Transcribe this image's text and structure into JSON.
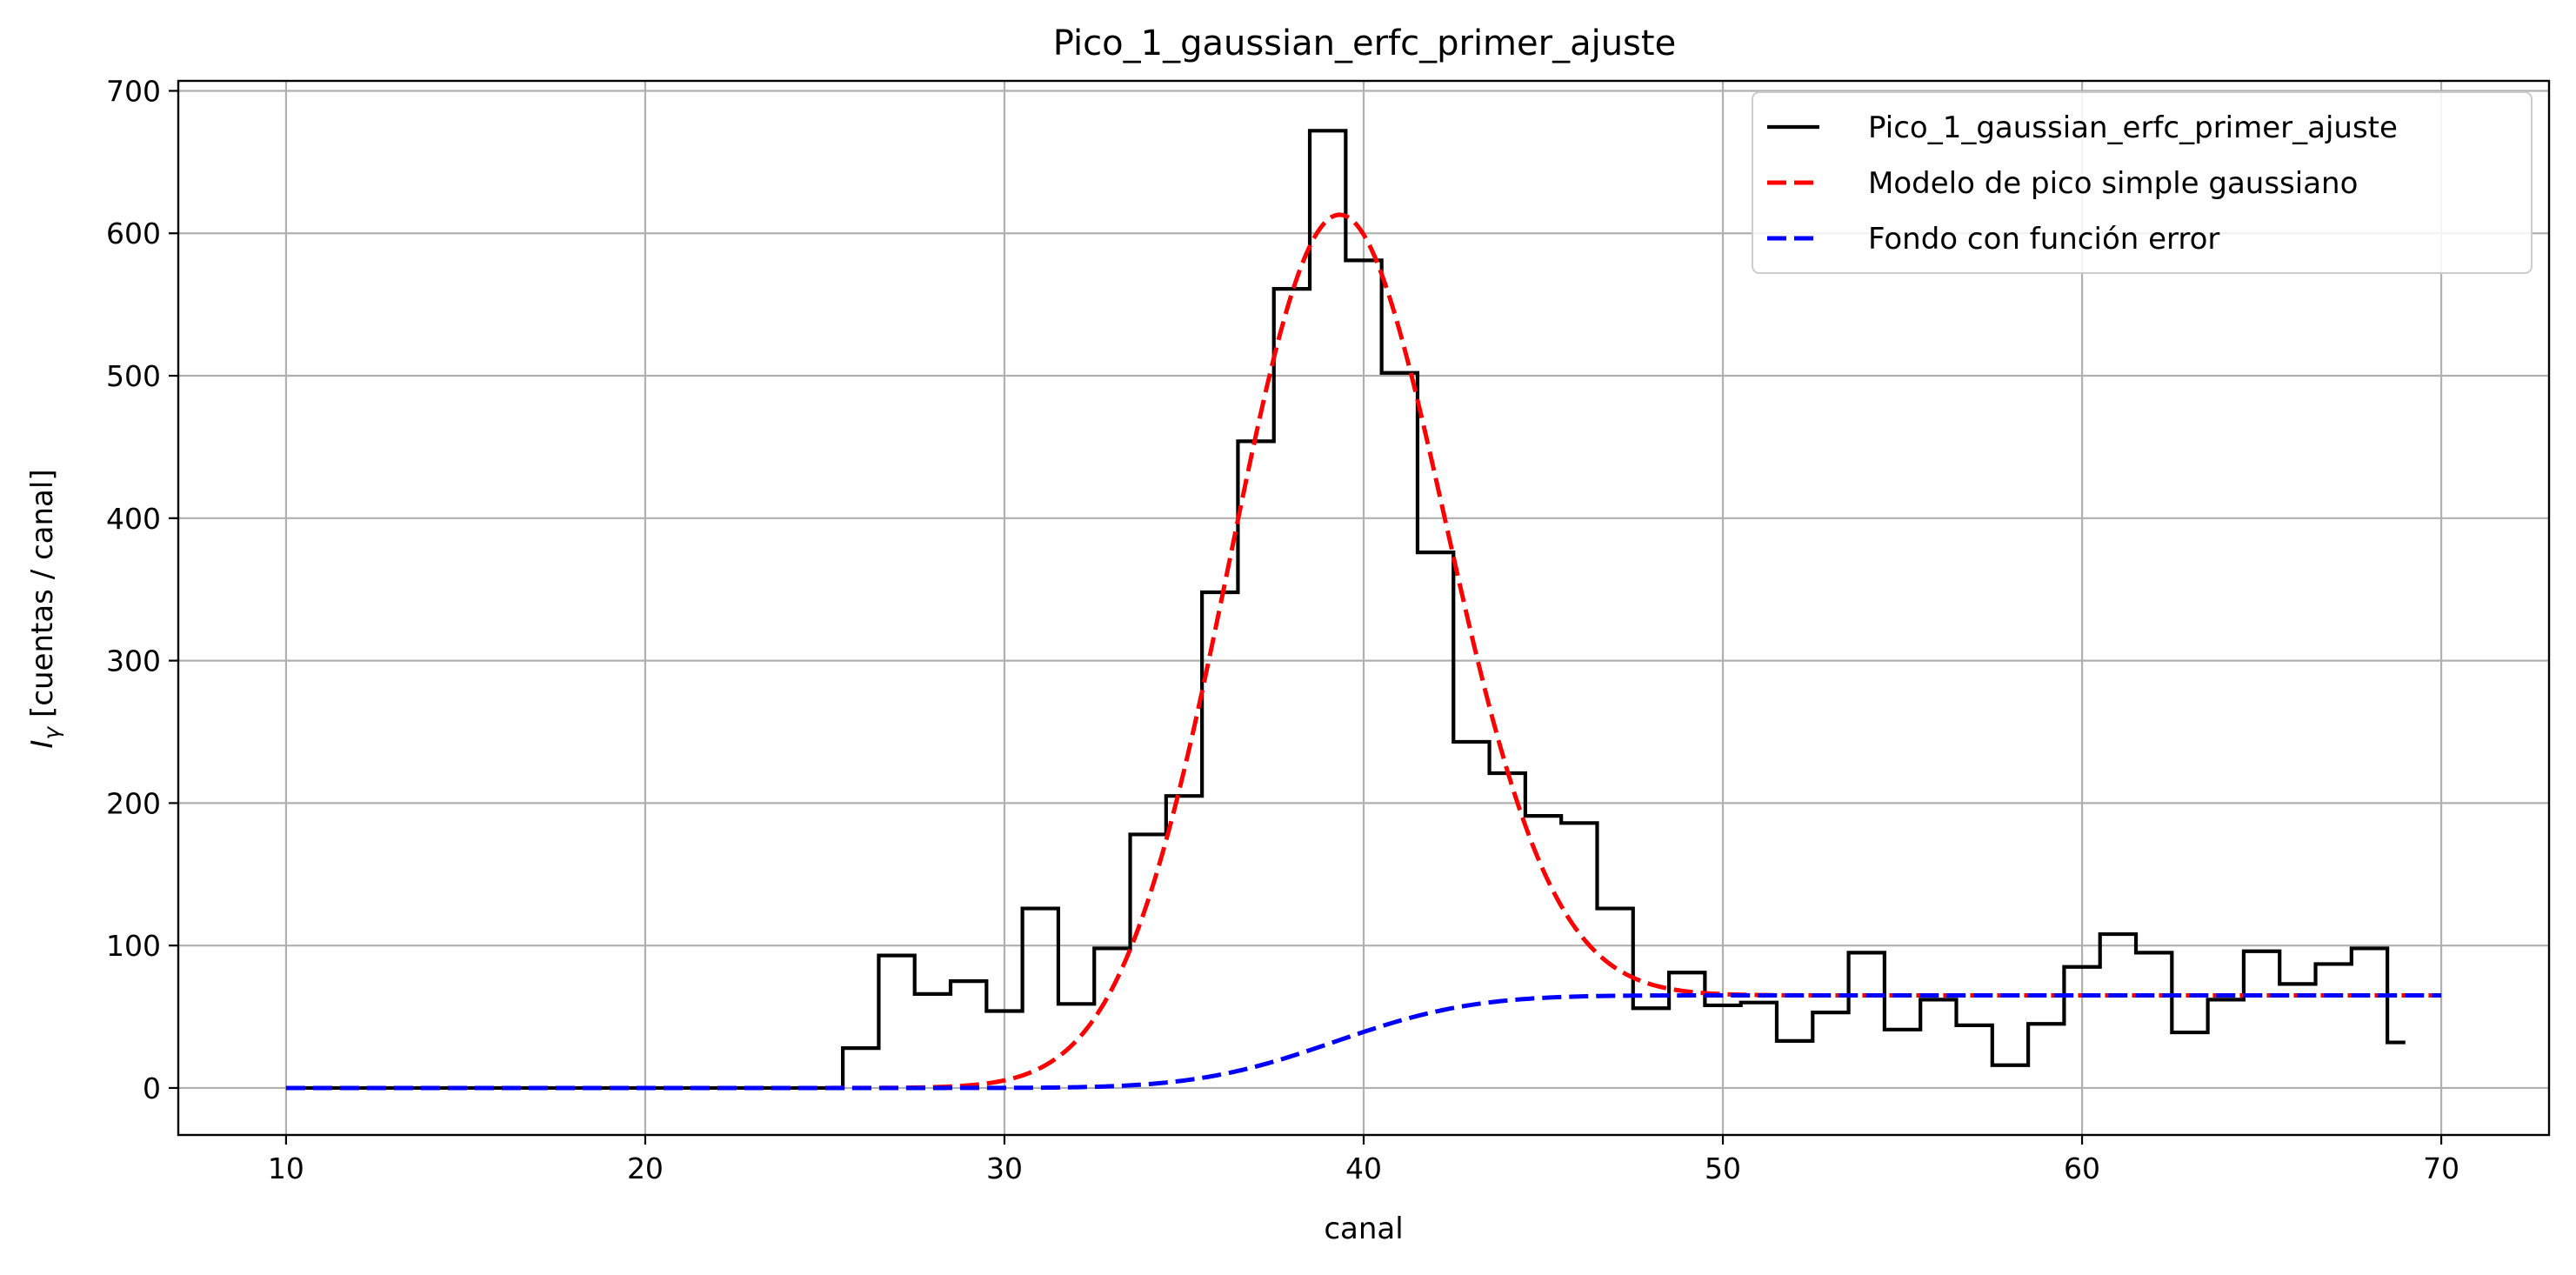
{
  "chart_data": {
    "type": "line",
    "title": "Pico_1_gaussian_erfc_primer_ajuste",
    "xlabel": "canal",
    "ylabel_main": "I",
    "ylabel_sub": "γ",
    "ylabel_rest": " [cuentas / canal]",
    "xlim": [
      7,
      73
    ],
    "ylim": [
      -33,
      707
    ],
    "xticks": [
      10,
      20,
      30,
      40,
      50,
      60,
      70
    ],
    "yticks": [
      0,
      100,
      200,
      300,
      400,
      500,
      600,
      700
    ],
    "grid": true,
    "legend_position": "top-right",
    "histogram": {
      "name": "Pico_1_gaussian_erfc_primer_ajuste",
      "color": "#000000",
      "style": "steps-mid",
      "x": [
        10,
        11,
        12,
        13,
        14,
        15,
        16,
        17,
        18,
        19,
        20,
        21,
        22,
        23,
        24,
        25,
        26,
        27,
        28,
        29,
        30,
        31,
        32,
        33,
        34,
        35,
        36,
        37,
        38,
        39,
        40,
        41,
        42,
        43,
        44,
        45,
        46,
        47,
        48,
        49,
        50,
        51,
        52,
        53,
        54,
        55,
        56,
        57,
        58,
        59,
        60,
        61,
        62,
        63,
        64,
        65,
        66,
        67,
        68,
        69
      ],
      "y": [
        0,
        0,
        0,
        0,
        0,
        0,
        0,
        0,
        0,
        0,
        0,
        0,
        0,
        0,
        0,
        0,
        28,
        93,
        66,
        75,
        54,
        126,
        59,
        98,
        178,
        205,
        348,
        454,
        561,
        672,
        581,
        502,
        376,
        243,
        221,
        191,
        186,
        126,
        56,
        81,
        58,
        60,
        33,
        53,
        95,
        41,
        62,
        44,
        16,
        45,
        85,
        108,
        95,
        39,
        62,
        96,
        73,
        87,
        98,
        32
      ]
    },
    "peak_model": {
      "name": "Modelo de pico simple gaussiano",
      "color": "#ff0000",
      "style": "dashed",
      "center": 39.2,
      "sigma": 3.0,
      "amplitude": 580
    },
    "background_model": {
      "name": "Fondo con función error",
      "color": "#0000ff",
      "style": "dashed",
      "center": 39.2,
      "sigma": 3.0,
      "level": 65
    },
    "x_range": [
      10,
      70
    ]
  }
}
